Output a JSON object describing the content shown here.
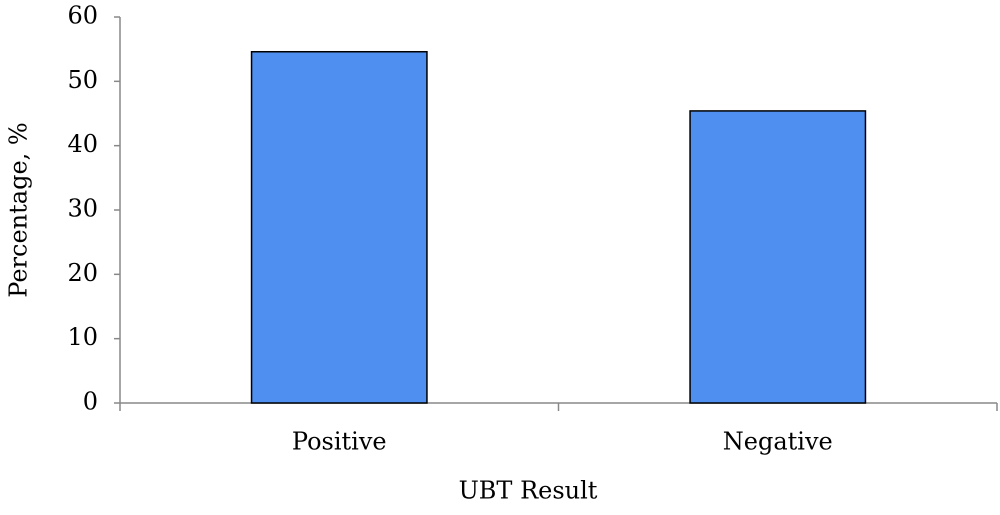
{
  "chart_data": {
    "type": "bar",
    "xlabel": "UBT Result",
    "ylabel": "Percentage, %",
    "categories": [
      "Positive",
      "Negative"
    ],
    "values": [
      54.6,
      45.4
    ],
    "color": "#4f8ff0",
    "ylim": [
      0,
      60
    ],
    "yticks": [
      0,
      10,
      20,
      30,
      40,
      50,
      60
    ],
    "grid": false
  }
}
